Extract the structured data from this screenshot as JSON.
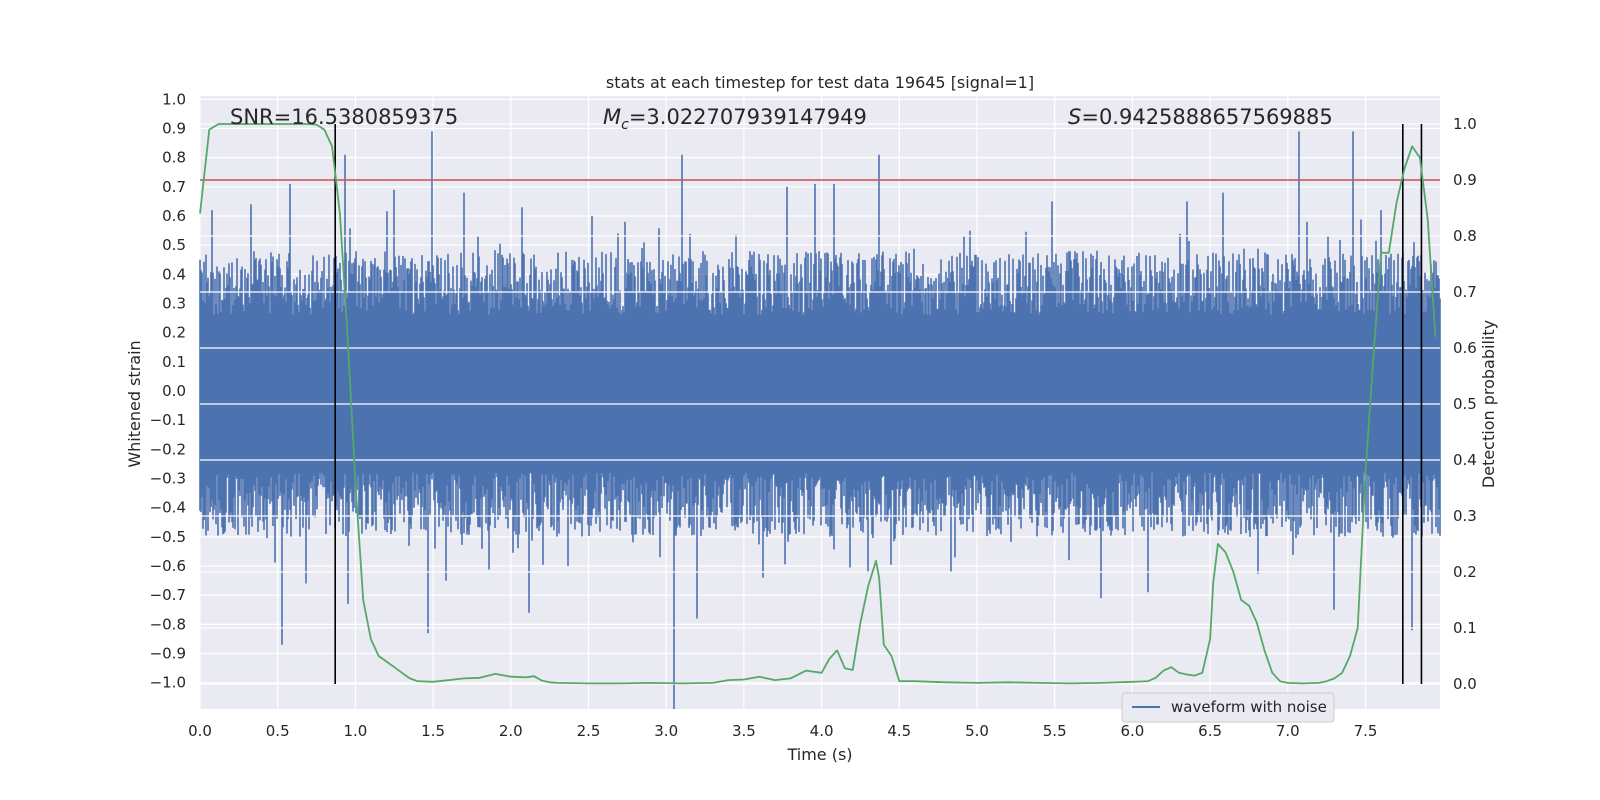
{
  "chart_data": {
    "type": "line",
    "title": "stats at each timestep for test data 19645 [signal=1]",
    "xlabel": "Time (s)",
    "ylabel": "Whitened strain",
    "y2label": "Detection probability",
    "xlim": [
      0.0,
      8.0
    ],
    "ylim": [
      -1.09,
      1.0
    ],
    "y2lim": [
      -0.05,
      1.045
    ],
    "x_ticks": [
      "0.0",
      "0.5",
      "1.0",
      "1.5",
      "2.0",
      "2.5",
      "3.0",
      "3.5",
      "4.0",
      "4.5",
      "5.0",
      "5.5",
      "6.0",
      "6.5",
      "7.0",
      "7.5"
    ],
    "y_ticks": [
      "1.0",
      "0.9",
      "0.8",
      "0.7",
      "0.6",
      "0.5",
      "0.4",
      "0.3",
      "0.2",
      "0.1",
      "0.0",
      "−0.1",
      "−0.2",
      "−0.3",
      "−0.4",
      "−0.5",
      "−0.6",
      "−0.7",
      "−0.8",
      "−0.9",
      "−1.0"
    ],
    "y2_ticks": [
      "1.0",
      "0.9",
      "0.8",
      "0.7",
      "0.6",
      "0.5",
      "0.4",
      "0.3",
      "0.2",
      "0.1",
      "0.0"
    ],
    "annotations": {
      "snr": "SNR=16.5380859375",
      "mc_symbol": "M",
      "mc_sub": "c",
      "mc_value": "=3.022707939147949",
      "s_symbol": "S",
      "s_value": "=0.9425888657569885"
    },
    "threshold": {
      "axis": "y2",
      "value": 0.9,
      "color": "#c44e52"
    },
    "vertical_lines": [
      0.87,
      7.74,
      7.86
    ],
    "legend": {
      "entry": "waveform with noise",
      "placement": "lower-right"
    },
    "grid": true,
    "colors": {
      "waveform": "#4c72b0",
      "probability": "#55a868",
      "background": "#eaeaf2",
      "vline": "#000000"
    },
    "series": [
      {
        "name": "waveform with noise",
        "axis": "y",
        "envelope_upper_typical": 0.42,
        "envelope_lower_typical": -0.46,
        "spikes": [
          [
            0.08,
            0.62
          ],
          [
            0.33,
            0.64
          ],
          [
            0.58,
            0.71
          ],
          [
            0.93,
            0.81
          ],
          [
            1.25,
            0.69
          ],
          [
            1.49,
            0.89
          ],
          [
            1.7,
            0.68
          ],
          [
            2.07,
            0.63
          ],
          [
            2.52,
            0.6
          ],
          [
            3.1,
            0.81
          ],
          [
            3.78,
            0.7
          ],
          [
            3.96,
            0.71
          ],
          [
            4.08,
            0.71
          ],
          [
            4.37,
            0.81
          ],
          [
            5.48,
            0.65
          ],
          [
            6.35,
            0.65
          ],
          [
            6.58,
            0.68
          ],
          [
            7.07,
            0.89
          ],
          [
            7.42,
            0.89
          ],
          [
            7.6,
            0.62
          ],
          [
            0.53,
            -0.87
          ],
          [
            0.68,
            -0.66
          ],
          [
            0.95,
            -0.73
          ],
          [
            1.47,
            -0.83
          ],
          [
            1.58,
            -0.65
          ],
          [
            2.12,
            -0.76
          ],
          [
            3.05,
            -1.09
          ],
          [
            3.2,
            -0.78
          ],
          [
            3.62,
            -0.64
          ],
          [
            4.3,
            -0.62
          ],
          [
            4.83,
            -0.62
          ],
          [
            5.8,
            -0.71
          ],
          [
            6.1,
            -0.69
          ],
          [
            7.3,
            -0.75
          ],
          [
            7.8,
            -0.82
          ]
        ]
      },
      {
        "name": "",
        "axis": "y2",
        "x": [
          0.0,
          0.06,
          0.12,
          0.2,
          0.3,
          0.4,
          0.5,
          0.6,
          0.7,
          0.75,
          0.8,
          0.85,
          0.9,
          0.95,
          1.0,
          1.05,
          1.1,
          1.15,
          1.2,
          1.25,
          1.3,
          1.35,
          1.4,
          1.5,
          1.6,
          1.7,
          1.8,
          1.9,
          2.0,
          2.1,
          2.15,
          2.2,
          2.25,
          2.3,
          2.5,
          2.7,
          2.9,
          3.1,
          3.3,
          3.4,
          3.5,
          3.6,
          3.7,
          3.8,
          3.9,
          4.0,
          4.05,
          4.1,
          4.15,
          4.2,
          4.25,
          4.3,
          4.35,
          4.37,
          4.4,
          4.45,
          4.5,
          4.6,
          4.8,
          5.0,
          5.2,
          5.4,
          5.6,
          5.8,
          6.0,
          6.1,
          6.15,
          6.2,
          6.25,
          6.3,
          6.35,
          6.4,
          6.45,
          6.5,
          6.52,
          6.55,
          6.6,
          6.65,
          6.7,
          6.75,
          6.8,
          6.85,
          6.9,
          6.95,
          7.0,
          7.1,
          7.2,
          7.25,
          7.3,
          7.35,
          7.4,
          7.45,
          7.5,
          7.55,
          7.6,
          7.65,
          7.7,
          7.75,
          7.8,
          7.85,
          7.9,
          7.95
        ],
        "values": [
          0.84,
          0.99,
          1.0,
          1.0,
          1.0,
          1.0,
          1.0,
          1.0,
          1.0,
          0.999,
          0.99,
          0.96,
          0.84,
          0.62,
          0.36,
          0.15,
          0.08,
          0.05,
          0.04,
          0.03,
          0.02,
          0.01,
          0.005,
          0.004,
          0.007,
          0.01,
          0.011,
          0.018,
          0.013,
          0.012,
          0.014,
          0.006,
          0.003,
          0.002,
          0.001,
          0.001,
          0.002,
          0.001,
          0.002,
          0.007,
          0.008,
          0.013,
          0.007,
          0.01,
          0.024,
          0.02,
          0.045,
          0.06,
          0.028,
          0.025,
          0.11,
          0.175,
          0.22,
          0.19,
          0.07,
          0.05,
          0.005,
          0.005,
          0.003,
          0.002,
          0.003,
          0.002,
          0.001,
          0.002,
          0.004,
          0.005,
          0.011,
          0.024,
          0.03,
          0.02,
          0.017,
          0.015,
          0.02,
          0.08,
          0.18,
          0.25,
          0.235,
          0.2,
          0.15,
          0.14,
          0.11,
          0.06,
          0.02,
          0.005,
          0.002,
          0.001,
          0.002,
          0.005,
          0.01,
          0.02,
          0.05,
          0.1,
          0.38,
          0.58,
          0.77,
          0.77,
          0.86,
          0.92,
          0.96,
          0.94,
          0.83,
          0.62
        ]
      }
    ]
  }
}
